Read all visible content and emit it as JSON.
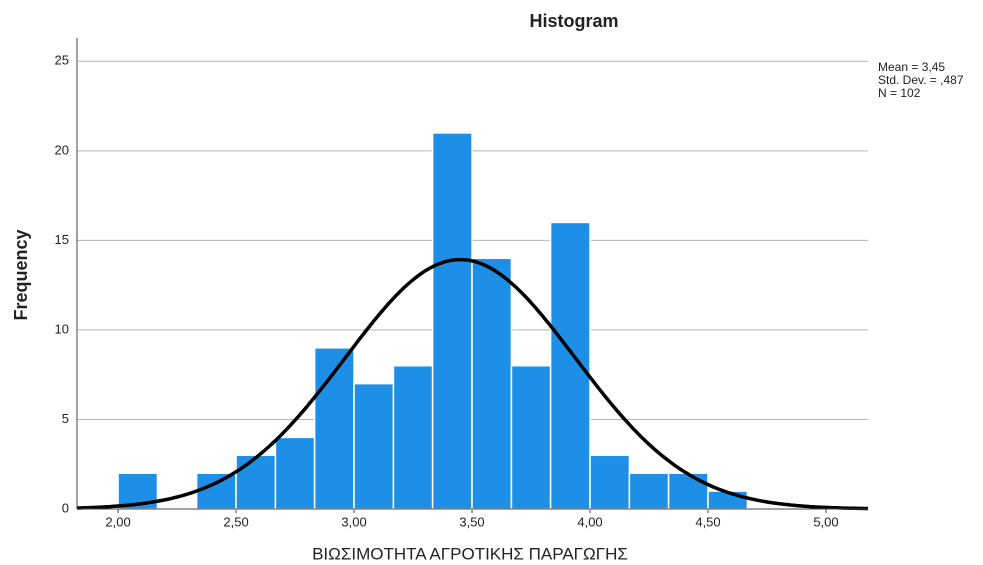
{
  "chart_data": {
    "type": "histogram",
    "title": "Histogram",
    "x_label": "ΒΙΩΣΙΜΟΤΗΤΑ ΑΓΡΟΤΙΚΗΣ ΠΑΡΑΓΩΓΗΣ",
    "y_label": "Frequency",
    "bins": [
      2.0,
      2.167,
      2.333,
      2.5,
      2.667,
      2.833,
      3.0,
      3.167,
      3.333,
      3.5,
      3.667,
      3.833,
      4.0,
      4.167,
      4.333,
      4.5,
      4.667
    ],
    "values": [
      2,
      0,
      2,
      3,
      4,
      9,
      7,
      8,
      21,
      14,
      8,
      16,
      3,
      2,
      2,
      1
    ],
    "color": "#1e8fe6",
    "xlim": [
      1.826,
      5.178
    ],
    "ylim": [
      0,
      26.3
    ],
    "xticks": [
      {
        "value": 2,
        "label": "2,00"
      },
      {
        "value": 2.5,
        "label": "2,50"
      },
      {
        "value": 3,
        "label": "3,00"
      },
      {
        "value": 3.5,
        "label": "3,50"
      },
      {
        "value": 4,
        "label": "4,00"
      },
      {
        "value": 4.5,
        "label": "4,50"
      },
      {
        "value": 5,
        "label": "5,00"
      }
    ],
    "yticks": [
      0,
      5,
      10,
      15,
      20,
      25
    ],
    "grid": true,
    "normal_curve": {
      "mean": 3.45,
      "std_dev": 0.487,
      "n": 102,
      "color": "#000000"
    },
    "stats": [
      "Mean = 3,45",
      "Std. Dev. = ,487",
      "N = 102"
    ]
  }
}
